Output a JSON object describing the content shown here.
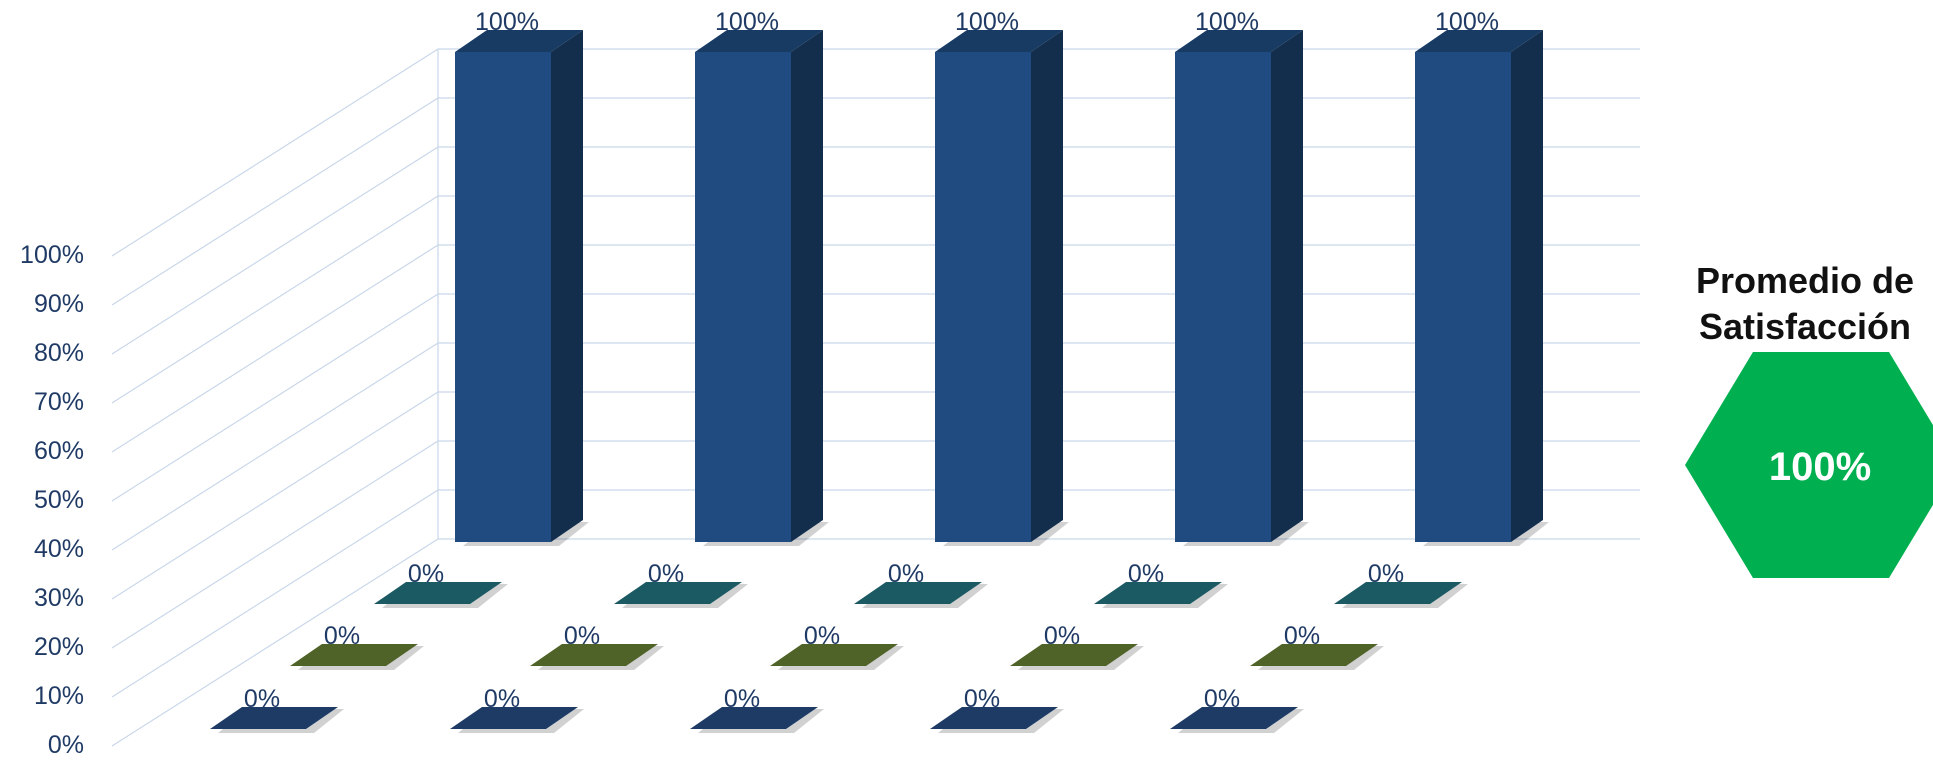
{
  "chart_data": {
    "type": "bar",
    "subtype": "3d-column",
    "categories": [
      "",
      "",
      "",
      "",
      ""
    ],
    "series": [
      {
        "values": [
          0,
          0,
          0,
          0,
          0
        ],
        "color": "#1e3b66",
        "data_labels": [
          "0%",
          "0%",
          "0%",
          "0%",
          "0%"
        ]
      },
      {
        "values": [
          0,
          0,
          0,
          0,
          0
        ],
        "color": "#4f6228",
        "data_labels": [
          "0%",
          "0%",
          "0%",
          "0%",
          "0%"
        ]
      },
      {
        "values": [
          0,
          0,
          0,
          0,
          0
        ],
        "color": "#1b5a63",
        "data_labels": [
          "0%",
          "0%",
          "0%",
          "0%",
          "0%"
        ]
      },
      {
        "values": [
          100,
          100,
          100,
          100,
          100
        ],
        "color": "#1f4b80",
        "data_labels": [
          "100%",
          "100%",
          "100%",
          "100%",
          "100%"
        ]
      }
    ],
    "yticks": [
      "0%",
      "10%",
      "20%",
      "30%",
      "40%",
      "50%",
      "60%",
      "70%",
      "80%",
      "90%",
      "100%"
    ],
    "ylim": [
      0,
      100
    ],
    "grid": true
  },
  "badge": {
    "title_line1": "Promedio de",
    "title_line2": "Satisfacción",
    "value": "100%",
    "color": "#00b050"
  },
  "colors": {
    "axis_text": "#1f3a64",
    "gridline": "#c9d7ea"
  }
}
